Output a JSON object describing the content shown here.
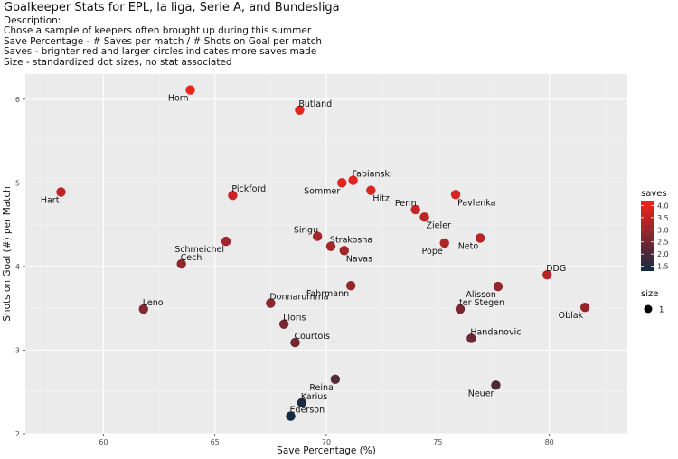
{
  "chart_data": {
    "type": "scatter",
    "title": "Goalkeeper Stats for EPL, la liga, Serie A, and Bundesliga",
    "description_heading": "Description:",
    "description_lines": [
      "Chose a sample of keepers often brought up during this summer",
      "Save Percentage - # Saves per match / # Shots on Goal per match",
      "Saves - brighter red and larger circles indicates more saves made",
      "Size - standardized dot sizes, no stat associated"
    ],
    "xlabel": "Save Percentage (%)",
    "ylabel": "Shots on Goal (#) per Match",
    "xlim": [
      56.5,
      83.5
    ],
    "ylim": [
      2.0,
      6.3
    ],
    "xticks": [
      60,
      65,
      70,
      75,
      80
    ],
    "yticks": [
      2,
      3,
      4,
      5,
      6
    ],
    "grid": true,
    "color_scale": {
      "name": "saves",
      "min": 1.3,
      "max": 4.2,
      "low": "#132B43",
      "high": "#F5231C",
      "ticks": [
        "4.0",
        "3.5",
        "3.0",
        "2.5",
        "2.0",
        "1.5"
      ]
    },
    "size_legend": {
      "title": "size",
      "label": "1"
    },
    "points": [
      {
        "name": "Horn",
        "x": 63.9,
        "y": 6.11,
        "saves": 4.1,
        "label_side": "bl"
      },
      {
        "name": "Butland",
        "x": 68.8,
        "y": 5.87,
        "saves": 4.0,
        "label_side": "ar"
      },
      {
        "name": "Hart",
        "x": 58.1,
        "y": 4.89,
        "saves": 3.5,
        "label_side": "bl"
      },
      {
        "name": "Pickford",
        "x": 65.8,
        "y": 4.85,
        "saves": 3.6,
        "label_side": "ar"
      },
      {
        "name": "Fabianski",
        "x": 71.2,
        "y": 5.03,
        "saves": 3.9,
        "label_side": "ar"
      },
      {
        "name": "Sommer",
        "x": 70.7,
        "y": 5.0,
        "saves": 3.9,
        "label_side": "bl"
      },
      {
        "name": "Hitz",
        "x": 72.0,
        "y": 4.91,
        "saves": 3.8,
        "label_side": "br"
      },
      {
        "name": "Pavlenka",
        "x": 75.8,
        "y": 4.86,
        "saves": 3.8,
        "label_side": "br"
      },
      {
        "name": "Perin",
        "x": 74.0,
        "y": 4.68,
        "saves": 3.6,
        "label_side": "al"
      },
      {
        "name": "Zieler",
        "x": 74.4,
        "y": 4.59,
        "saves": 3.5,
        "label_side": "br"
      },
      {
        "name": "Neto",
        "x": 76.9,
        "y": 4.34,
        "saves": 3.4,
        "label_side": "bl"
      },
      {
        "name": "Pope",
        "x": 75.3,
        "y": 4.28,
        "saves": 3.3,
        "label_side": "bl"
      },
      {
        "name": "Sirigu",
        "x": 69.6,
        "y": 4.36,
        "saves": 3.2,
        "label_side": "al"
      },
      {
        "name": "Strakosha",
        "x": 70.2,
        "y": 4.24,
        "saves": 3.2,
        "label_side": "ar"
      },
      {
        "name": "Navas",
        "x": 70.8,
        "y": 4.19,
        "saves": 3.1,
        "label_side": "br"
      },
      {
        "name": "Schmeichel",
        "x": 65.5,
        "y": 4.3,
        "saves": 3.1,
        "label_side": "bl"
      },
      {
        "name": "Cech",
        "x": 63.5,
        "y": 4.03,
        "saves": 2.9,
        "label_side": "ar"
      },
      {
        "name": "DDG",
        "x": 79.9,
        "y": 3.9,
        "saves": 3.4,
        "label_side": "ar"
      },
      {
        "name": "Fahrmann",
        "x": 71.1,
        "y": 3.77,
        "saves": 3.0,
        "label_side": "bl"
      },
      {
        "name": "Alisson",
        "x": 77.7,
        "y": 3.76,
        "saves": 3.0,
        "label_side": "bl"
      },
      {
        "name": "Leno",
        "x": 61.8,
        "y": 3.49,
        "saves": 2.7,
        "label_side": "ar"
      },
      {
        "name": "Donnarumma",
        "x": 67.5,
        "y": 3.56,
        "saves": 2.8,
        "label_side": "ar"
      },
      {
        "name": "ter Stegen",
        "x": 76.0,
        "y": 3.49,
        "saves": 2.6,
        "label_side": "ar"
      },
      {
        "name": "Oblak",
        "x": 81.6,
        "y": 3.51,
        "saves": 3.0,
        "label_side": "bl"
      },
      {
        "name": "Lloris",
        "x": 68.1,
        "y": 3.31,
        "saves": 2.6,
        "label_side": "ar"
      },
      {
        "name": "Courtois",
        "x": 68.6,
        "y": 3.09,
        "saves": 2.5,
        "label_side": "ar"
      },
      {
        "name": "Handanovic",
        "x": 76.5,
        "y": 3.14,
        "saves": 2.4,
        "label_side": "ar"
      },
      {
        "name": "Reina",
        "x": 70.4,
        "y": 2.65,
        "saves": 2.1,
        "label_side": "bl"
      },
      {
        "name": "Neuer",
        "x": 77.6,
        "y": 2.58,
        "saves": 2.0,
        "label_side": "bl"
      },
      {
        "name": "Karius",
        "x": 68.9,
        "y": 2.37,
        "saves": 1.4,
        "label_side": "ar"
      },
      {
        "name": "Ederson",
        "x": 68.4,
        "y": 2.21,
        "saves": 1.3,
        "label_side": "ar"
      }
    ]
  }
}
